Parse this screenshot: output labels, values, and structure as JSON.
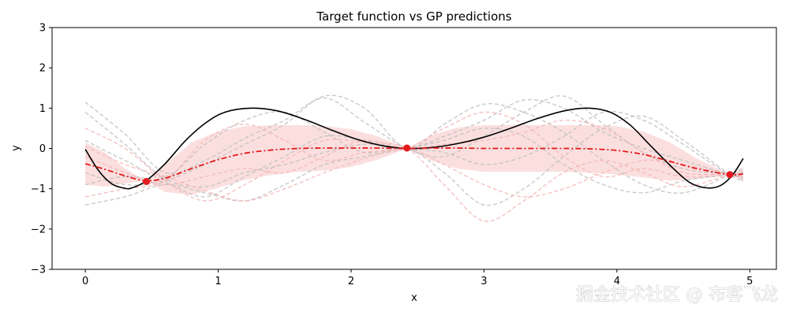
{
  "chart_data": {
    "type": "line",
    "title": "Target function vs GP predictions",
    "xlabel": "x",
    "ylabel": "y",
    "xlim": [
      -0.25,
      5.2
    ],
    "ylim": [
      -3,
      3
    ],
    "xticks": [
      0,
      1,
      2,
      3,
      4,
      5
    ],
    "yticks": [
      -3,
      -2,
      -1,
      0,
      1,
      2,
      3
    ],
    "ytick_labels": [
      "−3",
      "−2",
      "−1",
      "0",
      "1",
      "2",
      "3"
    ],
    "grid": false,
    "target_function": {
      "name": "target function",
      "color": "#000000",
      "x": [
        0,
        0.1,
        0.2,
        0.3,
        0.35,
        0.45,
        0.6,
        0.75,
        0.9,
        1.05,
        1.25,
        1.45,
        1.65,
        1.85,
        2.05,
        2.25,
        2.42,
        2.6,
        2.8,
        3.0,
        3.2,
        3.4,
        3.6,
        3.78,
        3.95,
        4.1,
        4.25,
        4.4,
        4.55,
        4.68,
        4.78,
        4.87,
        4.95
      ],
      "y": [
        -0.02,
        -0.55,
        -0.88,
        -0.99,
        -0.98,
        -0.82,
        -0.38,
        0.18,
        0.62,
        0.9,
        1.0,
        0.93,
        0.72,
        0.46,
        0.22,
        0.06,
        0.0,
        0.02,
        0.12,
        0.28,
        0.5,
        0.74,
        0.93,
        1.0,
        0.9,
        0.58,
        0.08,
        -0.42,
        -0.85,
        -0.98,
        -0.92,
        -0.66,
        -0.25
      ]
    },
    "gp_mean": {
      "name": "GP mean",
      "color": "#e41a1c",
      "x": [
        0,
        0.15,
        0.3,
        0.45,
        0.6,
        0.8,
        1.0,
        1.2,
        1.4,
        1.6,
        1.8,
        2.0,
        2.2,
        2.42,
        2.6,
        2.8,
        3.0,
        3.2,
        3.4,
        3.6,
        3.8,
        4.0,
        4.2,
        4.4,
        4.6,
        4.85,
        4.95
      ],
      "y": [
        -0.38,
        -0.52,
        -0.68,
        -0.8,
        -0.74,
        -0.5,
        -0.28,
        -0.12,
        -0.04,
        0.0,
        0.01,
        0.01,
        0.01,
        0.0,
        0.01,
        0.01,
        0.0,
        0.0,
        0.0,
        0.0,
        -0.01,
        -0.05,
        -0.15,
        -0.32,
        -0.5,
        -0.65,
        -0.63
      ]
    },
    "confidence_band": {
      "x": [
        0,
        0.15,
        0.3,
        0.45,
        0.6,
        0.8,
        1.0,
        1.2,
        1.4,
        1.6,
        1.8,
        2.0,
        2.2,
        2.42,
        2.6,
        2.8,
        3.0,
        3.2,
        3.4,
        3.6,
        3.8,
        4.0,
        4.2,
        4.4,
        4.6,
        4.85,
        4.95
      ],
      "upper": [
        0.15,
        -0.1,
        -0.5,
        -0.8,
        -0.4,
        0.15,
        0.42,
        0.55,
        0.58,
        0.58,
        0.56,
        0.48,
        0.3,
        0.0,
        0.32,
        0.52,
        0.58,
        0.58,
        0.58,
        0.58,
        0.58,
        0.55,
        0.42,
        0.15,
        -0.25,
        -0.65,
        -0.48
      ],
      "lower": [
        -0.9,
        -0.95,
        -0.87,
        -0.8,
        -1.08,
        -1.15,
        -0.98,
        -0.78,
        -0.66,
        -0.58,
        -0.55,
        -0.46,
        -0.28,
        0.0,
        -0.3,
        -0.5,
        -0.58,
        -0.58,
        -0.58,
        -0.58,
        -0.6,
        -0.65,
        -0.72,
        -0.8,
        -0.76,
        -0.65,
        -0.78
      ]
    },
    "observations": {
      "name": "observations",
      "color": "#e41a1c",
      "x": [
        0.46,
        2.42,
        4.85
      ],
      "y": [
        -0.82,
        0.01,
        -0.65
      ]
    },
    "samples": {
      "x": [
        0,
        0.3,
        0.6,
        0.9,
        1.2,
        1.5,
        1.8,
        2.1,
        2.42,
        2.7,
        3.0,
        3.3,
        3.6,
        3.9,
        4.2,
        4.5,
        4.85,
        4.95
      ],
      "series": [
        {
          "color": "#bfbfbf",
          "y": [
            1.15,
            0.35,
            -0.6,
            -0.3,
            0.25,
            0.7,
            1.25,
            0.65,
            0.0,
            -0.2,
            0.3,
            0.9,
            1.3,
            0.6,
            -0.1,
            -0.5,
            -0.65,
            -0.7
          ]
        },
        {
          "color": "#bfbfbf",
          "y": [
            -1.4,
            -1.2,
            -0.9,
            -1.1,
            -1.3,
            -0.9,
            -0.4,
            -0.2,
            0.0,
            0.2,
            0.5,
            0.3,
            -0.4,
            -0.9,
            -1.1,
            -0.8,
            -0.65,
            -0.6
          ]
        },
        {
          "color": "#bfbfbf",
          "y": [
            0.2,
            -0.3,
            -0.7,
            0.1,
            0.7,
            0.9,
            0.4,
            -0.1,
            0.0,
            -0.6,
            -1.4,
            -1.0,
            -0.2,
            0.5,
            0.8,
            0.2,
            -0.65,
            -0.8
          ]
        },
        {
          "color": "#bfbfbf",
          "y": [
            -0.6,
            -0.9,
            -0.8,
            -0.4,
            0.1,
            0.6,
            1.3,
            1.0,
            0.0,
            0.6,
            1.1,
            0.9,
            0.4,
            -0.3,
            -0.9,
            -1.1,
            -0.65,
            -0.5
          ]
        },
        {
          "color": "#bfbfbf",
          "y": [
            -0.9,
            -0.7,
            -0.85,
            -1.2,
            -0.7,
            -0.2,
            0.3,
            0.2,
            0.0,
            0.3,
            0.7,
            1.2,
            1.0,
            0.4,
            0.0,
            -0.3,
            -0.65,
            -0.75
          ]
        },
        {
          "color": "#bfbfbf",
          "y": [
            0.9,
            0.1,
            -0.75,
            -0.95,
            -0.6,
            -0.4,
            -0.1,
            0.1,
            0.0,
            -0.1,
            -0.4,
            -0.2,
            0.3,
            0.9,
            0.7,
            0.1,
            -0.65,
            -0.55
          ]
        },
        {
          "color": "#f4b6b6",
          "y": [
            0.5,
            0.0,
            -0.8,
            -1.3,
            -0.9,
            -0.3,
            0.2,
            0.15,
            0.0,
            -0.9,
            -1.8,
            -1.3,
            -0.6,
            -0.3,
            -0.6,
            -0.95,
            -0.65,
            -0.7
          ]
        },
        {
          "color": "#f4b6b6",
          "y": [
            -1.2,
            -1.0,
            -0.8,
            0.2,
            0.6,
            0.2,
            -0.3,
            -0.1,
            0.0,
            0.5,
            0.9,
            0.6,
            -0.2,
            -0.7,
            -0.5,
            -0.7,
            -0.65,
            -0.6
          ]
        },
        {
          "color": "#f4b6b6",
          "y": [
            -0.2,
            -0.6,
            -0.9,
            -0.7,
            -0.5,
            -0.6,
            -0.2,
            0.2,
            0.0,
            0.1,
            0.2,
            0.4,
            0.7,
            0.5,
            -0.1,
            -0.6,
            -0.65,
            -0.8
          ]
        },
        {
          "color": "#f4b6b6",
          "y": [
            0.05,
            -0.4,
            -0.7,
            -1.05,
            -1.3,
            -1.0,
            -0.6,
            -0.25,
            0.0,
            -0.4,
            -0.9,
            -1.2,
            -1.0,
            -0.6,
            -0.3,
            -0.4,
            -0.65,
            -0.7
          ]
        }
      ]
    }
  },
  "watermark": "掘金技术社区 @ 布客飞龙"
}
